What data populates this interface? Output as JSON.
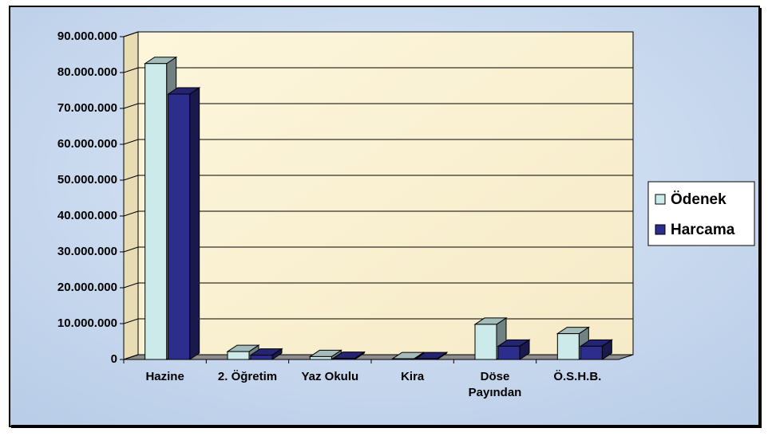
{
  "chart_data": {
    "type": "bar3d",
    "categories": [
      "Hazine",
      "2. Öğretim",
      "Yaz Okulu",
      "Kira",
      "Döse Payından",
      "Ö.S.H.B."
    ],
    "series": [
      {
        "name": "Ödenek",
        "color": "#cdeaea",
        "values": [
          82500000,
          2200000,
          800000,
          200000,
          9800000,
          7200000
        ]
      },
      {
        "name": "Harcama",
        "color": "#2d2d8e",
        "values": [
          74000000,
          1200000,
          300000,
          200000,
          3700000,
          3700000
        ]
      }
    ],
    "ylim": [
      0,
      90000000
    ],
    "yticks": [
      0,
      {
        "value": 10000000,
        "label": "10.000.000"
      },
      {
        "value": 20000000,
        "label": "20.000.000"
      },
      {
        "value": 30000000,
        "label": "30.000.000"
      },
      {
        "value": 40000000,
        "label": "40.000.000"
      },
      {
        "value": 50000000,
        "label": "50.000.000"
      },
      {
        "value": 60000000,
        "label": "60.000.000"
      },
      {
        "value": 70000000,
        "label": "70.000.000"
      },
      {
        "value": 80000000,
        "label": "80.000.000"
      },
      {
        "value": 90000000,
        "label": "90.000.000"
      }
    ],
    "grid": true,
    "legend": "right"
  }
}
